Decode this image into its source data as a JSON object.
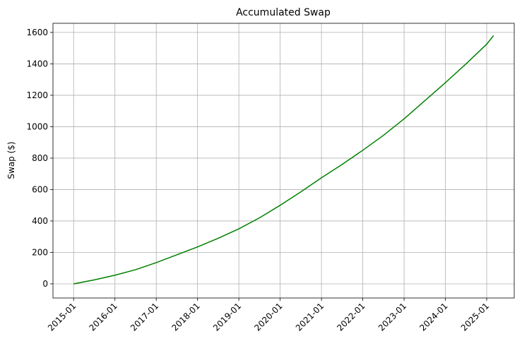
{
  "chart_data": {
    "type": "line",
    "title": "Accumulated Swap",
    "y_label": "Swap ($)",
    "x": [
      "2015-01",
      "2015-07",
      "2016-01",
      "2016-07",
      "2017-01",
      "2017-07",
      "2018-01",
      "2018-07",
      "2019-01",
      "2019-07",
      "2020-01",
      "2020-07",
      "2021-01",
      "2021-07",
      "2022-01",
      "2022-07",
      "2023-01",
      "2023-07",
      "2024-01",
      "2024-07",
      "2025-01",
      "2025-03"
    ],
    "series": [
      {
        "name": "Accumulated Swap",
        "color": "#008000",
        "values": [
          0,
          25,
          55,
          90,
          135,
          185,
          235,
          290,
          350,
          420,
          500,
          585,
          675,
          760,
          850,
          945,
          1050,
          1165,
          1280,
          1400,
          1525,
          1580
        ]
      }
    ],
    "xlim": [
      "2014-07",
      "2025-09"
    ],
    "xticks": [
      "2015-01",
      "2016-01",
      "2017-01",
      "2018-01",
      "2019-01",
      "2020-01",
      "2021-01",
      "2022-01",
      "2023-01",
      "2024-01",
      "2025-01"
    ],
    "ylim": [
      -90,
      1658
    ],
    "yticks": [
      0,
      200,
      400,
      600,
      800,
      1000,
      1200,
      1400,
      1600
    ],
    "grid": true
  }
}
